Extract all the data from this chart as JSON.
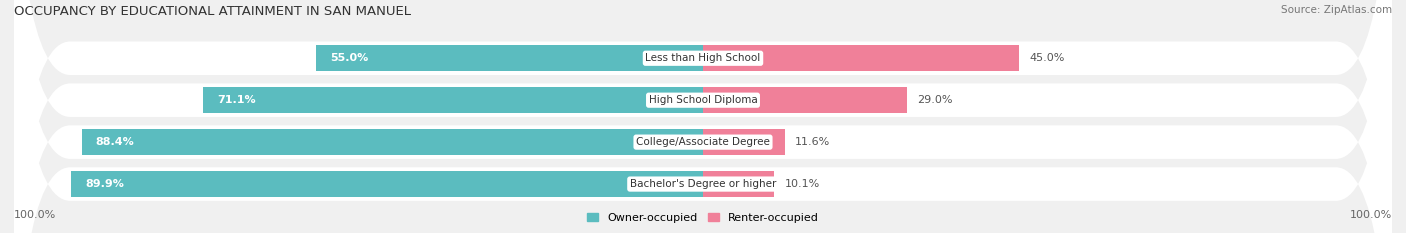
{
  "title": "OCCUPANCY BY EDUCATIONAL ATTAINMENT IN SAN MANUEL",
  "source": "Source: ZipAtlas.com",
  "categories": [
    "Less than High School",
    "High School Diploma",
    "College/Associate Degree",
    "Bachelor's Degree or higher"
  ],
  "owner_pct": [
    55.0,
    71.1,
    88.4,
    89.9
  ],
  "renter_pct": [
    45.0,
    29.0,
    11.6,
    10.1
  ],
  "owner_color": "#5bbcbf",
  "renter_color": "#f08099",
  "bg_color": "#f0f0f0",
  "row_bg_color": "#e8e8e8",
  "title_fontsize": 9.5,
  "label_fontsize": 8,
  "source_fontsize": 7.5,
  "legend_fontsize": 8,
  "fig_width": 14.06,
  "fig_height": 2.33
}
